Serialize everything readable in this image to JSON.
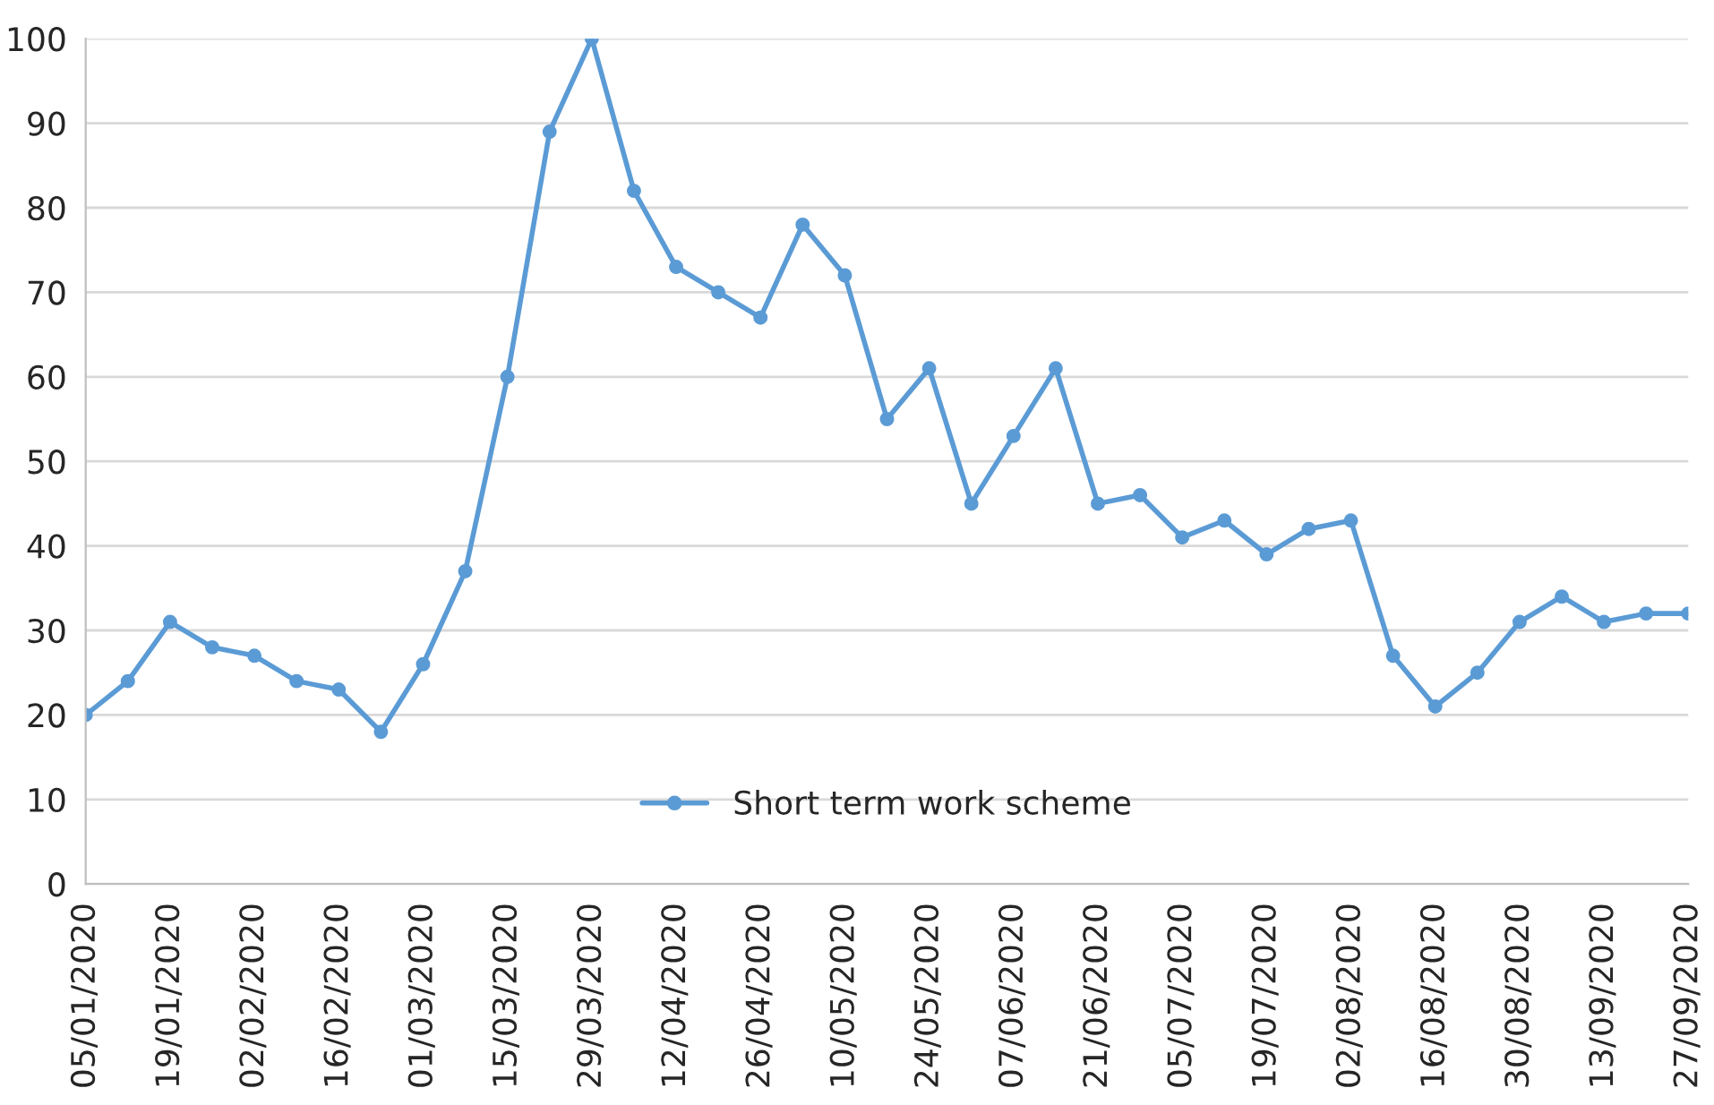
{
  "chart_data": {
    "type": "line",
    "categories": [
      "05/01/2020",
      null,
      "19/01/2020",
      null,
      "02/02/2020",
      null,
      "16/02/2020",
      null,
      "01/03/2020",
      null,
      "15/03/2020",
      null,
      "29/03/2020",
      null,
      "12/04/2020",
      null,
      "26/04/2020",
      null,
      "10/05/2020",
      null,
      "24/05/2020",
      null,
      "07/06/2020",
      null,
      "21/06/2020",
      null,
      "05/07/2020",
      null,
      "19/07/2020",
      null,
      "02/08/2020",
      null,
      "16/08/2020",
      null,
      "30/08/2020",
      null,
      "13/09/2020",
      null,
      "27/09/2020"
    ],
    "series": [
      {
        "name": "Short term work scheme",
        "color": "#5b9bd5",
        "values": [
          20,
          24,
          31,
          28,
          27,
          24,
          23,
          18,
          26,
          37,
          60,
          89,
          100,
          82,
          73,
          70,
          67,
          78,
          72,
          55,
          61,
          45,
          53,
          61,
          45,
          46,
          41,
          43,
          39,
          42,
          43,
          27,
          21,
          25,
          31,
          34,
          31,
          32,
          32
        ]
      }
    ],
    "ylim": [
      0,
      100
    ],
    "yticks": [
      0,
      10,
      20,
      30,
      40,
      50,
      60,
      70,
      80,
      90,
      100
    ],
    "grid": "y",
    "legend": "bottom",
    "marker": "circle",
    "line_style": "solid"
  }
}
